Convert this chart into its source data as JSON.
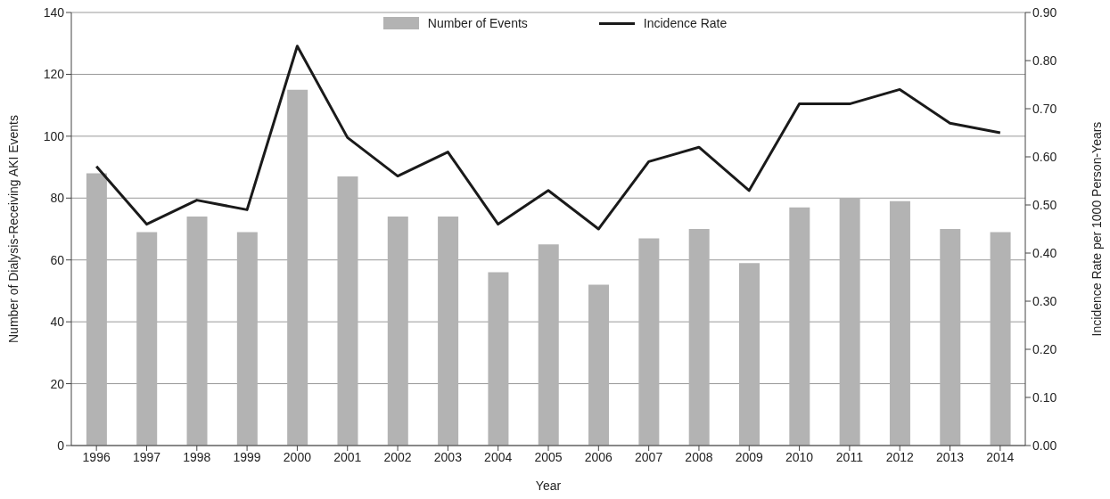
{
  "chart_data": {
    "type": "bar",
    "xlabel": "Year",
    "ylabel": "Number of Dialysis-Receiving AKI Events",
    "y2label": "Incidence Rate per 1000 Person-Years",
    "categories": [
      "1996",
      "1997",
      "1998",
      "1999",
      "2000",
      "2001",
      "2002",
      "2003",
      "2004",
      "2005",
      "2006",
      "2007",
      "2008",
      "2009",
      "2010",
      "2011",
      "2012",
      "2013",
      "2014"
    ],
    "series": [
      {
        "name": "Number of Events",
        "color": "#b3b3b3",
        "values": [
          88,
          69,
          74,
          69,
          115,
          87,
          74,
          74,
          56,
          65,
          52,
          67,
          70,
          59,
          77,
          80,
          79,
          70,
          69
        ]
      },
      {
        "name": "Incidence Rate",
        "type": "line",
        "axis": "y2",
        "color": "#1a1a1a",
        "values": [
          0.58,
          0.46,
          0.51,
          0.49,
          0.83,
          0.64,
          0.56,
          0.61,
          0.46,
          0.53,
          0.45,
          0.59,
          0.62,
          0.53,
          0.71,
          0.71,
          0.74,
          0.67,
          0.65
        ]
      }
    ],
    "ylim": [
      0,
      140
    ],
    "yticks": [
      0,
      20,
      40,
      60,
      80,
      100,
      120,
      140
    ],
    "y2lim": [
      0,
      0.9
    ],
    "y2ticks": [
      {
        "value": 0,
        "label": "0.00"
      },
      {
        "value": 0.1,
        "label": "0.10"
      },
      {
        "value": 0.2,
        "label": "0.20"
      },
      {
        "value": 0.3,
        "label": "0.30"
      },
      {
        "value": 0.4,
        "label": "0.40"
      },
      {
        "value": 0.5,
        "label": "0.50"
      },
      {
        "value": 0.6,
        "label": "0.60"
      },
      {
        "value": 0.7,
        "label": "0.70"
      },
      {
        "value": 0.8,
        "label": "0.80"
      },
      {
        "value": 0.9,
        "label": "0.90"
      }
    ],
    "grid": "y",
    "legend": "top",
    "marker": "none",
    "line_style": "solid"
  }
}
